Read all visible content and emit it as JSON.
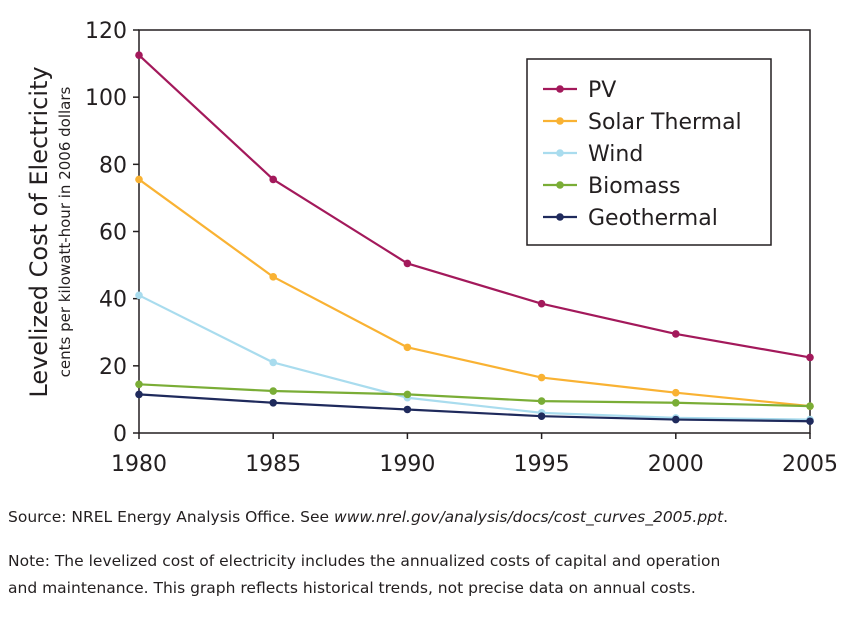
{
  "chart_data": {
    "type": "line",
    "ylabel": "Levelized Cost of Electricity",
    "ylabel_sub": "cents per kilowatt-hour in 2006 dollars",
    "xlabel": "",
    "x": [
      1980,
      1985,
      1990,
      1995,
      2000,
      2005
    ],
    "xlim": [
      1980,
      2005
    ],
    "ylim": [
      0,
      120
    ],
    "yticks": [
      0,
      20,
      40,
      60,
      80,
      100,
      120
    ],
    "grid": false,
    "legend_position": "top-right",
    "series": [
      {
        "name": "PV",
        "color": "#a3195b",
        "values": [
          112.5,
          75.5,
          50.5,
          38.5,
          29.5,
          22.5
        ]
      },
      {
        "name": "Solar Thermal",
        "color": "#f9b233",
        "values": [
          75.5,
          46.5,
          25.5,
          16.5,
          12,
          8
        ]
      },
      {
        "name": "Wind",
        "color": "#a9dcee",
        "values": [
          41,
          21,
          10.5,
          6,
          4.5,
          4
        ]
      },
      {
        "name": "Biomass",
        "color": "#7aad36",
        "values": [
          14.5,
          12.5,
          11.5,
          9.5,
          9,
          8
        ]
      },
      {
        "name": "Geothermal",
        "color": "#1f2a5c",
        "values": [
          11.5,
          9,
          7,
          5,
          4,
          3.5
        ]
      }
    ]
  },
  "source": {
    "prefix": "Source: NREL Energy Analysis Office. See ",
    "url": "www.nrel.gov/analysis/docs/cost_curves_2005.ppt",
    "suffix": "."
  },
  "note": {
    "line1": "Note: The levelized cost of electricity includes the annualized costs of capital and operation",
    "line2": "and maintenance. This graph reflects historical trends, not precise data on annual costs."
  }
}
